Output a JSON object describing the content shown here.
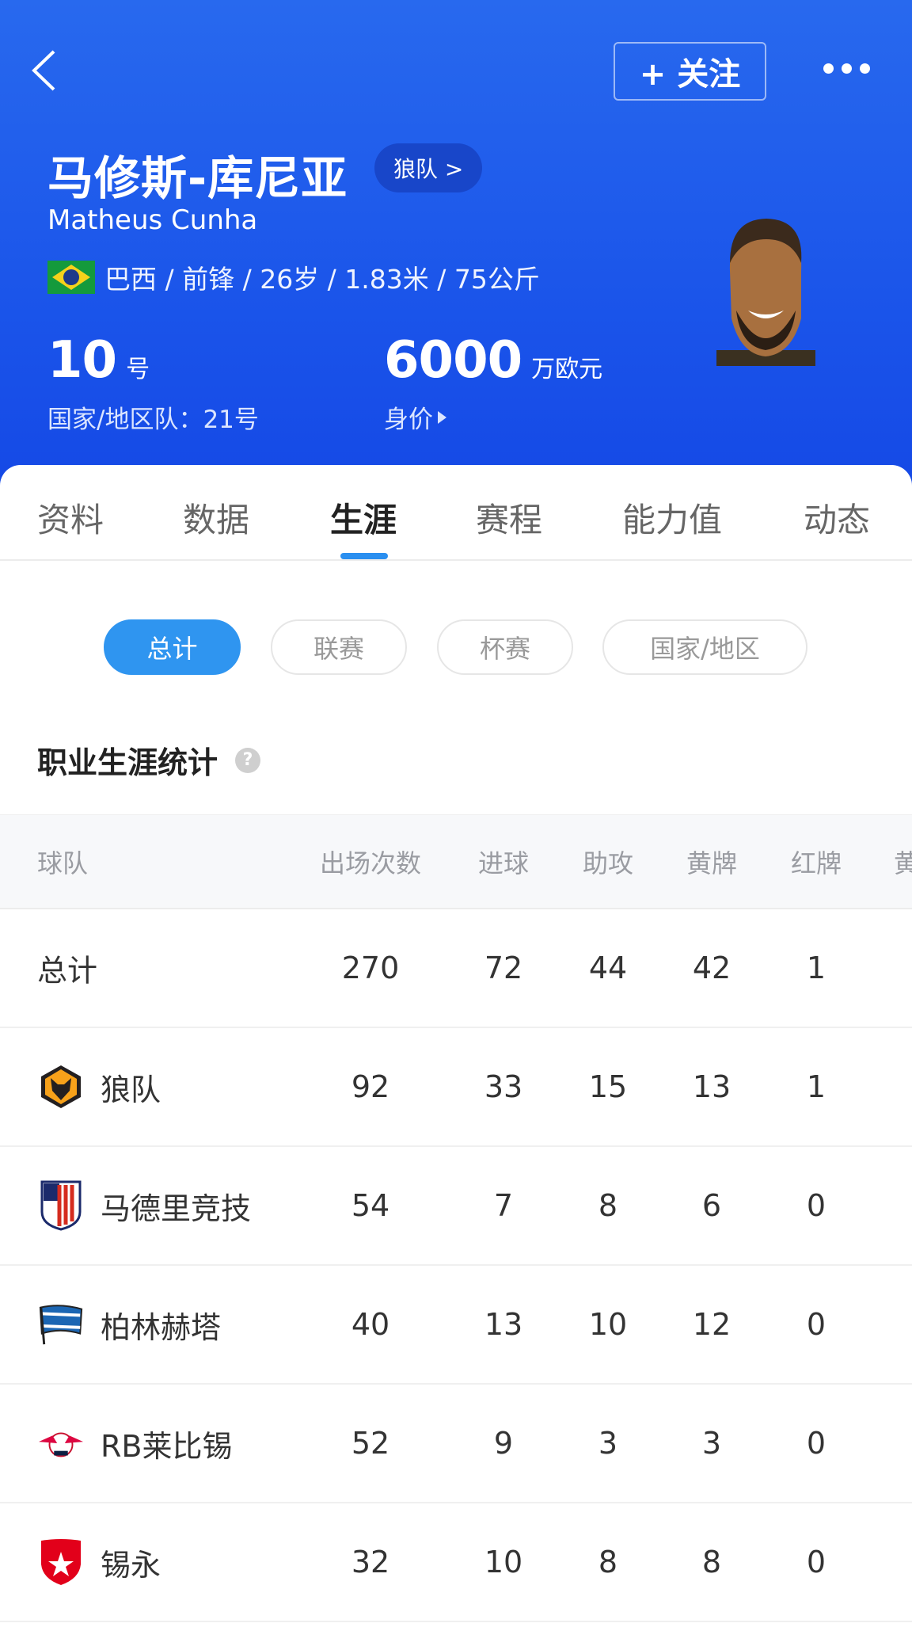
{
  "header": {
    "follow_label": "+ 关注",
    "player_name": "马修斯-库尼亚",
    "team_chip": "狼队 >",
    "english_name": "Matheus Cunha",
    "info": "巴西 / 前锋 / 26岁 / 1.83米 / 75公斤",
    "shirt_number": "10",
    "shirt_unit": "号",
    "national_number": "国家/地区队：21号",
    "market_value": "6000",
    "market_value_unit": "万欧元",
    "market_value_label": "身价",
    "icons": {
      "back": "chevron-left-icon",
      "more": "more-dots-icon",
      "flag": "brazil-flag-icon"
    }
  },
  "tabs": [
    {
      "label": "资料"
    },
    {
      "label": "数据"
    },
    {
      "label": "生涯",
      "active": true
    },
    {
      "label": "赛程"
    },
    {
      "label": "能力值"
    },
    {
      "label": "动态"
    }
  ],
  "filters": [
    {
      "label": "总计",
      "active": true
    },
    {
      "label": "联赛"
    },
    {
      "label": "杯赛"
    },
    {
      "label": "国家/地区"
    }
  ],
  "section_title": "职业生涯统计",
  "table": {
    "headers": [
      "球队",
      "出场次数",
      "进球",
      "助攻",
      "黄牌",
      "红牌",
      "黄"
    ],
    "rows": [
      {
        "team": "总计",
        "apps": "270",
        "goals": "72",
        "assists": "44",
        "yellow": "42",
        "red": "1",
        "logo": ""
      },
      {
        "team": "狼队",
        "apps": "92",
        "goals": "33",
        "assists": "15",
        "yellow": "13",
        "red": "1",
        "logo": "wolves-logo"
      },
      {
        "team": "马德里竞技",
        "apps": "54",
        "goals": "7",
        "assists": "8",
        "yellow": "6",
        "red": "0",
        "logo": "atletico-logo"
      },
      {
        "team": "柏林赫塔",
        "apps": "40",
        "goals": "13",
        "assists": "10",
        "yellow": "12",
        "red": "0",
        "logo": "hertha-logo"
      },
      {
        "team": "RB莱比锡",
        "apps": "52",
        "goals": "9",
        "assists": "3",
        "yellow": "3",
        "red": "0",
        "logo": "leipzig-logo"
      },
      {
        "team": "锡永",
        "apps": "32",
        "goals": "10",
        "assists": "8",
        "yellow": "8",
        "red": "0",
        "logo": "sion-logo"
      }
    ]
  },
  "colors": {
    "hero": "#1b55ea",
    "accent": "#2f95f0"
  }
}
